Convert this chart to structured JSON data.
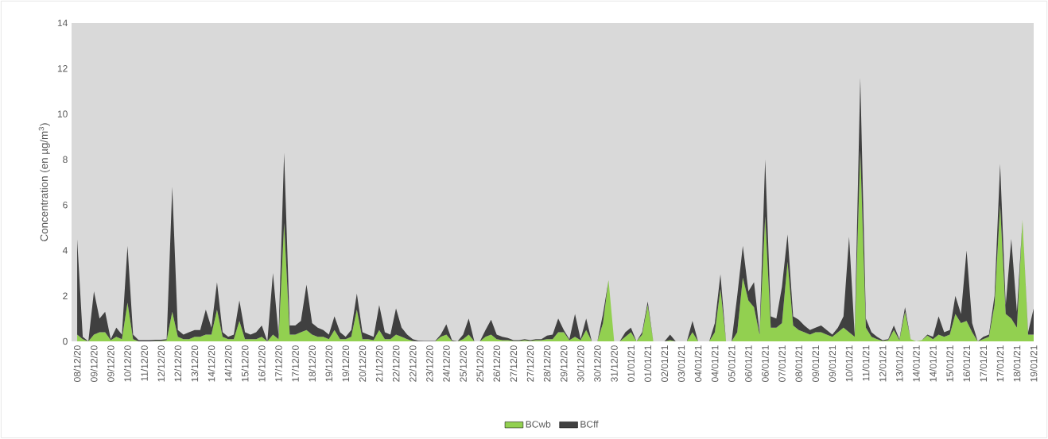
{
  "chart_data": {
    "type": "area",
    "stacked": true,
    "ylabel": "Concentration (en µg/m$^{3}$)",
    "categories": [
      "08/12/20",
      null,
      null,
      "09/12/20",
      null,
      null,
      "09/12/20",
      null,
      null,
      "10/12/20",
      null,
      null,
      "11/12/20",
      null,
      null,
      "12/12/20",
      null,
      null,
      "12/12/20",
      null,
      null,
      "13/12/20",
      null,
      null,
      "14/12/20",
      null,
      null,
      "14/12/20",
      null,
      null,
      "15/12/20",
      null,
      null,
      "16/12/20",
      null,
      null,
      "17/12/20",
      null,
      null,
      "17/12/20",
      null,
      null,
      "18/12/20",
      null,
      null,
      "19/12/20",
      null,
      null,
      "19/12/20",
      null,
      null,
      "20/12/20",
      null,
      null,
      "21/12/20",
      null,
      null,
      "22/12/20",
      null,
      null,
      "22/12/20",
      null,
      null,
      "23/12/20",
      null,
      null,
      "24/12/20",
      null,
      null,
      "25/12/20",
      null,
      null,
      "25/12/20",
      null,
      null,
      "26/12/20",
      null,
      null,
      "27/12/20",
      null,
      null,
      "27/12/20",
      null,
      null,
      "28/12/20",
      null,
      null,
      "29/12/20",
      null,
      null,
      "30/12/20",
      null,
      null,
      "30/12/20",
      null,
      null,
      "31/12/20",
      null,
      null,
      "01/01/21",
      null,
      null,
      "01/01/21",
      null,
      null,
      "02/01/21",
      null,
      null,
      "03/01/21",
      null,
      null,
      "04/01/21",
      null,
      null,
      "04/01/21",
      null,
      null,
      "05/01/21",
      null,
      null,
      "06/01/21",
      null,
      null,
      "06/01/21",
      null,
      null,
      "07/01/21",
      null,
      null,
      "08/01/21",
      null,
      null,
      "09/01/21",
      null,
      null,
      "09/01/21",
      null,
      null,
      "10/01/21",
      null,
      null,
      "11/01/21",
      null,
      null,
      "12/01/21",
      null,
      null,
      "13/01/21",
      null,
      null,
      "14/01/21",
      null,
      null,
      "14/01/21",
      null,
      null,
      "15/01/21",
      null,
      null,
      "16/01/21",
      null,
      null,
      "17/01/21",
      null,
      null,
      "17/01/21",
      null,
      null,
      "18/01/21",
      null,
      null,
      "19/01/21"
    ],
    "series": [
      {
        "name": "BCwb",
        "color": "#92d050",
        "values": [
          0.3,
          0.1,
          0,
          0.3,
          0.4,
          0.4,
          0.05,
          0.2,
          0.1,
          1.7,
          0.1,
          0,
          0,
          0,
          0.02,
          0.02,
          0.05,
          1.3,
          0.2,
          0.1,
          0.1,
          0.2,
          0.2,
          0.3,
          0.3,
          1.4,
          0.2,
          0.1,
          0.1,
          0.9,
          0.1,
          0.1,
          0.1,
          0.2,
          0,
          0.3,
          0.1,
          5.2,
          0.3,
          0.3,
          0.4,
          0.5,
          0.3,
          0.2,
          0.2,
          0.1,
          0.5,
          0.1,
          0.1,
          0.2,
          1.4,
          0.1,
          0.1,
          0.05,
          0.5,
          0.1,
          0.1,
          0.3,
          0.2,
          0.1,
          0.02,
          0,
          0,
          0,
          0,
          0.2,
          0.3,
          0.02,
          0,
          0.1,
          0.3,
          0,
          0,
          0.2,
          0.3,
          0.1,
          0.05,
          0.05,
          0.02,
          0.02,
          0.05,
          0.02,
          0.05,
          0.05,
          0.1,
          0.1,
          0.4,
          0.4,
          0.05,
          0.2,
          0.05,
          0.5,
          0,
          0,
          0.8,
          2.7,
          0,
          0,
          0.2,
          0.4,
          0,
          0.3,
          1.6,
          0,
          0,
          0,
          0.05,
          0,
          0,
          0,
          0.4,
          0,
          0,
          0,
          0.4,
          2.3,
          0,
          0,
          0.4,
          2.8,
          1.8,
          1.5,
          0.3,
          5.5,
          0.6,
          0.6,
          0.8,
          3.5,
          0.7,
          0.5,
          0.4,
          0.3,
          0.4,
          0.4,
          0.3,
          0.2,
          0.4,
          0.6,
          0.4,
          0.2,
          8.4,
          0.6,
          0.2,
          0.1,
          0.02,
          0.05,
          0.5,
          0.05,
          1.3,
          0.1,
          0,
          0.05,
          0.25,
          0.1,
          0.3,
          0.2,
          0.3,
          1.2,
          0.8,
          0.9,
          0.4,
          0,
          0.1,
          0.2,
          1.6,
          6.0,
          1.2,
          1.0,
          0.6,
          5.35,
          0.3,
          0.3
        ]
      },
      {
        "name": "BCff",
        "color": "#404040",
        "values": [
          4.2,
          0.1,
          0,
          1.9,
          0.6,
          0.9,
          0.05,
          0.4,
          0.2,
          2.5,
          0.2,
          0.05,
          0.05,
          0.05,
          0.05,
          0.05,
          0.05,
          5.5,
          0.3,
          0.2,
          0.3,
          0.3,
          0.3,
          1.1,
          0.3,
          1.2,
          0.2,
          0.1,
          0.2,
          0.9,
          0.3,
          0.2,
          0.3,
          0.5,
          0,
          2.7,
          0.2,
          3.1,
          0.4,
          0.4,
          0.5,
          2.0,
          0.5,
          0.4,
          0.3,
          0.2,
          0.6,
          0.3,
          0.1,
          0.3,
          0.7,
          0.3,
          0.2,
          0.15,
          1.1,
          0.3,
          0.2,
          1.15,
          0.4,
          0.2,
          0.08,
          0.03,
          0.02,
          0.02,
          0.02,
          0.1,
          0.45,
          0.03,
          0,
          0.2,
          0.7,
          0,
          0,
          0.3,
          0.65,
          0.2,
          0.15,
          0.1,
          0.03,
          0.03,
          0.05,
          0.03,
          0.05,
          0.05,
          0.15,
          0.2,
          0.6,
          0.1,
          0.05,
          1.0,
          0.05,
          0.5,
          0,
          0,
          0.4,
          0,
          0,
          0,
          0.2,
          0.2,
          0,
          0.1,
          0.15,
          0,
          0,
          0,
          0.25,
          0,
          0,
          0,
          0.5,
          0,
          0,
          0,
          0.4,
          0.65,
          0,
          0,
          1.6,
          1.4,
          0.4,
          1.1,
          0.1,
          2.5,
          0.5,
          0.4,
          1.6,
          1.2,
          0.4,
          0.45,
          0.3,
          0.2,
          0.2,
          0.3,
          0.2,
          0.1,
          0.2,
          0.5,
          4.2,
          0.1,
          3.2,
          0.4,
          0.2,
          0.1,
          0.03,
          0.05,
          0.2,
          0.05,
          0.2,
          0,
          0,
          0,
          0.05,
          0.1,
          0.8,
          0.2,
          0.2,
          0.8,
          0.4,
          3.1,
          0.4,
          0,
          0.1,
          0.1,
          0.4,
          1.8,
          0.4,
          3.5,
          0.7,
          0,
          0.1,
          1.15
        ]
      }
    ],
    "ylim": [
      0,
      14
    ],
    "yticks": [
      0,
      2,
      4,
      6,
      8,
      10,
      12,
      14
    ],
    "legend": "bottom"
  }
}
